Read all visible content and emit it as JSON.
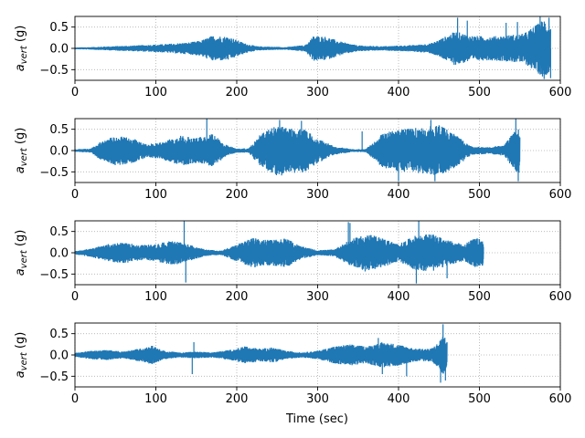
{
  "figure": {
    "xlabel": "Time (sec)"
  },
  "chart_data": [
    {
      "type": "line",
      "series_color": "#1f77b4",
      "ylabel": "a_vert (g)",
      "ylabel_main": "a",
      "ylabel_sub": "vert",
      "ylabel_unit": " (g)",
      "xlim": [
        0,
        600
      ],
      "ylim": [
        -0.75,
        0.75
      ],
      "xticks": [
        0,
        100,
        200,
        300,
        400,
        500,
        600
      ],
      "yticks": [
        -0.5,
        0.0,
        0.5
      ],
      "xtick_labels": [
        "0",
        "100",
        "200",
        "300",
        "400",
        "500",
        "600"
      ],
      "ytick_labels": [
        "−0.5",
        "0.0",
        "0.5"
      ],
      "grid": true,
      "duration": 588,
      "envelope": [
        [
          0,
          0.02
        ],
        [
          20,
          0.03
        ],
        [
          45,
          0.05
        ],
        [
          75,
          0.07
        ],
        [
          110,
          0.1
        ],
        [
          140,
          0.14
        ],
        [
          155,
          0.18
        ],
        [
          170,
          0.3
        ],
        [
          190,
          0.28
        ],
        [
          210,
          0.12
        ],
        [
          225,
          0.05
        ],
        [
          260,
          0.03
        ],
        [
          285,
          0.08
        ],
        [
          295,
          0.3
        ],
        [
          310,
          0.28
        ],
        [
          330,
          0.15
        ],
        [
          350,
          0.07
        ],
        [
          380,
          0.05
        ],
        [
          420,
          0.08
        ],
        [
          440,
          0.12
        ],
        [
          455,
          0.25
        ],
        [
          470,
          0.4
        ],
        [
          490,
          0.3
        ],
        [
          510,
          0.28
        ],
        [
          530,
          0.3
        ],
        [
          555,
          0.35
        ],
        [
          570,
          0.55
        ],
        [
          580,
          0.7
        ],
        [
          588,
          0.5
        ]
      ],
      "spikes": [
        [
          473,
          0.72
        ],
        [
          485,
          0.65
        ],
        [
          533,
          0.6
        ],
        [
          547,
          0.62
        ],
        [
          575,
          0.75
        ],
        [
          580,
          -0.72
        ],
        [
          586,
          0.72
        ],
        [
          588,
          -0.7
        ]
      ]
    },
    {
      "type": "line",
      "series_color": "#1f77b4",
      "ylabel": "a_vert (g)",
      "ylabel_main": "a",
      "ylabel_sub": "vert",
      "ylabel_unit": " (g)",
      "xlim": [
        0,
        600
      ],
      "ylim": [
        -0.75,
        0.75
      ],
      "xticks": [
        0,
        100,
        200,
        300,
        400,
        500,
        600
      ],
      "yticks": [
        -0.5,
        0.0,
        0.5
      ],
      "xtick_labels": [
        "0",
        "100",
        "200",
        "300",
        "400",
        "500",
        "600"
      ],
      "ytick_labels": [
        "−0.5",
        "0.0",
        "0.5"
      ],
      "grid": true,
      "duration": 550,
      "envelope": [
        [
          0,
          0.03
        ],
        [
          20,
          0.05
        ],
        [
          30,
          0.2
        ],
        [
          50,
          0.35
        ],
        [
          70,
          0.3
        ],
        [
          90,
          0.15
        ],
        [
          110,
          0.22
        ],
        [
          130,
          0.35
        ],
        [
          150,
          0.3
        ],
        [
          170,
          0.4
        ],
        [
          185,
          0.15
        ],
        [
          200,
          0.05
        ],
        [
          215,
          0.05
        ],
        [
          230,
          0.4
        ],
        [
          250,
          0.6
        ],
        [
          270,
          0.55
        ],
        [
          285,
          0.5
        ],
        [
          300,
          0.3
        ],
        [
          320,
          0.1
        ],
        [
          345,
          0.03
        ],
        [
          360,
          0.04
        ],
        [
          380,
          0.4
        ],
        [
          400,
          0.5
        ],
        [
          430,
          0.55
        ],
        [
          450,
          0.6
        ],
        [
          470,
          0.4
        ],
        [
          490,
          0.1
        ],
        [
          510,
          0.08
        ],
        [
          530,
          0.12
        ],
        [
          545,
          0.5
        ],
        [
          550,
          0.55
        ]
      ],
      "spikes": [
        [
          163,
          0.75
        ],
        [
          253,
          0.72
        ],
        [
          280,
          0.7
        ],
        [
          355,
          0.45
        ],
        [
          400,
          -0.72
        ],
        [
          440,
          0.72
        ],
        [
          445,
          -0.72
        ],
        [
          545,
          0.75
        ],
        [
          548,
          -0.72
        ]
      ]
    },
    {
      "type": "line",
      "series_color": "#1f77b4",
      "ylabel": "a_vert (g)",
      "ylabel_main": "a",
      "ylabel_sub": "vert",
      "ylabel_unit": " (g)",
      "xlim": [
        0,
        600
      ],
      "ylim": [
        -0.75,
        0.75
      ],
      "xticks": [
        0,
        100,
        200,
        300,
        400,
        500,
        600
      ],
      "yticks": [
        -0.5,
        0.0,
        0.5
      ],
      "xtick_labels": [
        "0",
        "100",
        "200",
        "300",
        "400",
        "500",
        "600"
      ],
      "ytick_labels": [
        "−0.5",
        "0.0",
        "0.5"
      ],
      "grid": true,
      "duration": 505,
      "envelope": [
        [
          0,
          0.04
        ],
        [
          20,
          0.1
        ],
        [
          40,
          0.2
        ],
        [
          60,
          0.25
        ],
        [
          80,
          0.18
        ],
        [
          100,
          0.2
        ],
        [
          120,
          0.3
        ],
        [
          140,
          0.2
        ],
        [
          160,
          0.08
        ],
        [
          180,
          0.05
        ],
        [
          200,
          0.2
        ],
        [
          220,
          0.35
        ],
        [
          240,
          0.3
        ],
        [
          260,
          0.35
        ],
        [
          280,
          0.15
        ],
        [
          300,
          0.06
        ],
        [
          320,
          0.08
        ],
        [
          340,
          0.3
        ],
        [
          360,
          0.45
        ],
        [
          380,
          0.35
        ],
        [
          400,
          0.2
        ],
        [
          420,
          0.4
        ],
        [
          440,
          0.45
        ],
        [
          460,
          0.3
        ],
        [
          480,
          0.2
        ],
        [
          495,
          0.35
        ],
        [
          505,
          0.3
        ]
      ],
      "spikes": [
        [
          135,
          0.75
        ],
        [
          137,
          -0.7
        ],
        [
          338,
          0.72
        ],
        [
          340,
          0.7
        ],
        [
          422,
          -0.72
        ],
        [
          425,
          0.75
        ],
        [
          460,
          -0.6
        ]
      ]
    },
    {
      "type": "line",
      "series_color": "#1f77b4",
      "ylabel": "a_vert (g)",
      "ylabel_main": "a",
      "ylabel_sub": "vert",
      "ylabel_unit": " (g)",
      "xlim": [
        0,
        600
      ],
      "ylim": [
        -0.75,
        0.75
      ],
      "xticks": [
        0,
        100,
        200,
        300,
        400,
        500,
        600
      ],
      "yticks": [
        -0.5,
        0.0,
        0.5
      ],
      "xtick_labels": [
        "0",
        "100",
        "200",
        "300",
        "400",
        "500",
        "600"
      ],
      "ytick_labels": [
        "−0.5",
        "0.0",
        "0.5"
      ],
      "grid": true,
      "duration": 460,
      "envelope": [
        [
          0,
          0.05
        ],
        [
          20,
          0.1
        ],
        [
          40,
          0.12
        ],
        [
          60,
          0.08
        ],
        [
          80,
          0.15
        ],
        [
          95,
          0.22
        ],
        [
          110,
          0.1
        ],
        [
          130,
          0.06
        ],
        [
          150,
          0.08
        ],
        [
          170,
          0.06
        ],
        [
          190,
          0.12
        ],
        [
          210,
          0.2
        ],
        [
          230,
          0.15
        ],
        [
          245,
          0.18
        ],
        [
          260,
          0.1
        ],
        [
          280,
          0.06
        ],
        [
          300,
          0.1
        ],
        [
          320,
          0.2
        ],
        [
          340,
          0.25
        ],
        [
          360,
          0.2
        ],
        [
          380,
          0.3
        ],
        [
          400,
          0.25
        ],
        [
          420,
          0.15
        ],
        [
          440,
          0.15
        ],
        [
          450,
          0.3
        ],
        [
          455,
          0.5
        ],
        [
          460,
          0.3
        ]
      ],
      "spikes": [
        [
          145,
          -0.45
        ],
        [
          147,
          0.3
        ],
        [
          375,
          0.4
        ],
        [
          380,
          -0.45
        ],
        [
          410,
          -0.5
        ],
        [
          452,
          -0.65
        ],
        [
          455,
          0.72
        ],
        [
          458,
          -0.6
        ]
      ]
    }
  ]
}
